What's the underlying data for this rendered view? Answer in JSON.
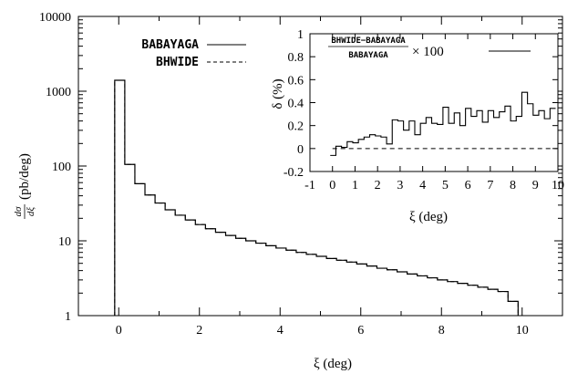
{
  "chart_data": [
    {
      "type": "line",
      "subtype": "step",
      "ylabel": "dσ/dξ (pb/deg)",
      "ylabel_parts": {
        "frac_num": "dσ",
        "frac_den": "dξ",
        "unit": "(pb/deg)"
      },
      "xlabel": "ξ (deg)",
      "xlim": [
        -1,
        11
      ],
      "ylim": [
        1,
        10000
      ],
      "yscale": "log",
      "xticks": [
        "0",
        "2",
        "4",
        "6",
        "8",
        "10"
      ],
      "yticks": [
        "1",
        "10",
        "100",
        "1000",
        "10000"
      ],
      "legend_position": "top-left",
      "series": [
        {
          "name": "BABAYAGA",
          "style": "solid"
        },
        {
          "name": "BHWIDE",
          "style": "dashed"
        }
      ],
      "bin_edges": [
        -0.1,
        0.15,
        0.4,
        0.65,
        0.9,
        1.15,
        1.4,
        1.65,
        1.9,
        2.15,
        2.4,
        2.65,
        2.9,
        3.15,
        3.4,
        3.65,
        3.9,
        4.15,
        4.4,
        4.65,
        4.9,
        5.15,
        5.4,
        5.65,
        5.9,
        6.15,
        6.4,
        6.65,
        6.9,
        7.15,
        7.4,
        7.65,
        7.9,
        8.15,
        8.4,
        8.65,
        8.9,
        9.15,
        9.4,
        9.65,
        9.9
      ],
      "values": [
        1400,
        105,
        58,
        41,
        32,
        26,
        22,
        19,
        16.5,
        14.5,
        13,
        11.8,
        10.8,
        10,
        9.3,
        8.6,
        8,
        7.5,
        7,
        6.6,
        6.2,
        5.8,
        5.5,
        5.2,
        4.9,
        4.6,
        4.3,
        4.1,
        3.85,
        3.6,
        3.4,
        3.2,
        3,
        2.85,
        2.7,
        2.55,
        2.4,
        2.25,
        2.1,
        1.55
      ]
    },
    {
      "type": "line",
      "subtype": "step",
      "ylabel": "δ (%)",
      "xlabel": "ξ (deg)",
      "xlim": [
        -1,
        10
      ],
      "ylim": [
        -0.2,
        1
      ],
      "xticks": [
        "-1",
        "0",
        "1",
        "2",
        "3",
        "4",
        "5",
        "6",
        "7",
        "8",
        "9",
        "10"
      ],
      "yticks": [
        "-0.2",
        "0",
        "0.2",
        "0.4",
        "0.6",
        "0.8",
        "1"
      ],
      "legend_position": "top",
      "legend_formula": {
        "numerator": "BHWIDE−BABAYAGA",
        "denominator": "BABAYAGA",
        "factor": "× 100"
      },
      "zero_line": "dashed",
      "bin_edges": [
        -0.1,
        0.15,
        0.4,
        0.65,
        0.9,
        1.15,
        1.4,
        1.65,
        1.9,
        2.15,
        2.4,
        2.65,
        2.9,
        3.15,
        3.4,
        3.65,
        3.9,
        4.15,
        4.4,
        4.65,
        4.9,
        5.15,
        5.4,
        5.65,
        5.9,
        6.15,
        6.4,
        6.65,
        6.9,
        7.15,
        7.4,
        7.65,
        7.9,
        8.15,
        8.4,
        8.65,
        8.9,
        9.15,
        9.4,
        9.65,
        9.9
      ],
      "values": [
        -0.06,
        0.02,
        0.01,
        0.06,
        0.05,
        0.08,
        0.1,
        0.12,
        0.11,
        0.1,
        0.04,
        0.25,
        0.24,
        0.16,
        0.24,
        0.12,
        0.22,
        0.27,
        0.22,
        0.21,
        0.36,
        0.22,
        0.31,
        0.2,
        0.35,
        0.28,
        0.33,
        0.23,
        0.33,
        0.27,
        0.32,
        0.37,
        0.24,
        0.28,
        0.49,
        0.39,
        0.29,
        0.33,
        0.26,
        0.35
      ]
    }
  ]
}
